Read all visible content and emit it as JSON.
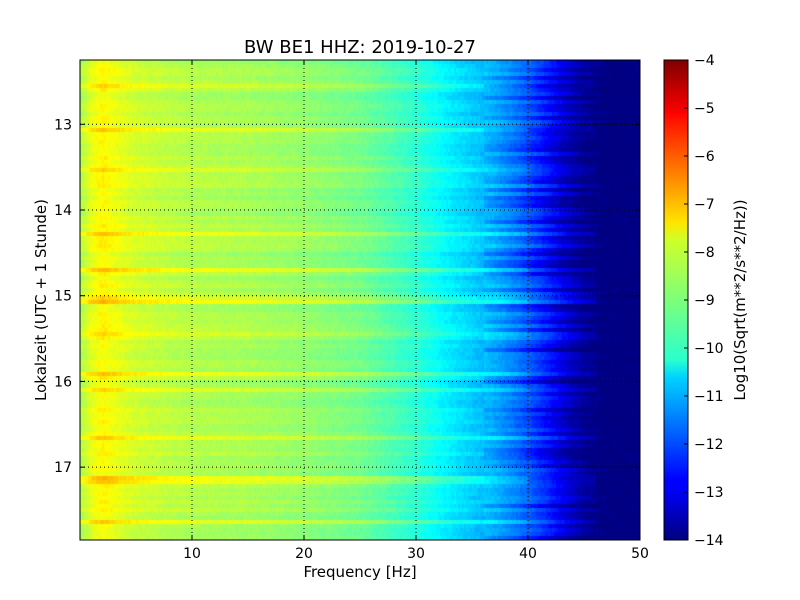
{
  "chart_data": {
    "type": "heatmap",
    "title": "BW BE1 HHZ: 2019-10-27",
    "xlabel": "Frequency [Hz]",
    "ylabel": "Lokalzeit (UTC + 1 Stunde)",
    "xlim": [
      0,
      50
    ],
    "ylim": [
      12.25,
      17.85
    ],
    "x_ticks": [
      10,
      20,
      30,
      40,
      50
    ],
    "x_tick_labels": [
      "10",
      "20",
      "30",
      "40",
      "50"
    ],
    "y_ticks": [
      13,
      14,
      15,
      16,
      17
    ],
    "y_tick_labels": [
      "13",
      "14",
      "15",
      "16",
      "17"
    ],
    "y_inverted": true,
    "grid": true,
    "colormap": "jet",
    "colorbar": {
      "label": "Log10(Sqrt(m**2/s**2/Hz))",
      "min": -14,
      "max": -4,
      "ticks": [
        -4,
        -5,
        -6,
        -7,
        -8,
        -9,
        -10,
        -11,
        -12,
        -13,
        -14
      ],
      "tick_labels": [
        "−4",
        "−5",
        "−6",
        "−7",
        "−8",
        "−9",
        "−10",
        "−11",
        "−12",
        "−13",
        "−14"
      ]
    },
    "spectral_profile": {
      "frequency_hz": [
        0,
        1,
        2,
        3,
        5,
        8,
        10,
        15,
        20,
        25,
        30,
        33,
        36,
        38,
        40,
        42,
        44,
        46,
        50
      ],
      "level": [
        -8.6,
        -8.0,
        -7.7,
        -7.9,
        -8.2,
        -8.4,
        -8.5,
        -8.6,
        -8.8,
        -9.1,
        -9.8,
        -10.4,
        -10.9,
        -11.4,
        -12.0,
        -12.8,
        -13.6,
        -14.0,
        -14.0
      ]
    },
    "bright_bands_hour": [
      12.55,
      13.05,
      13.55,
      14.3,
      14.7,
      15.05,
      15.45,
      15.9,
      16.12,
      16.65,
      17.15,
      17.65
    ]
  }
}
